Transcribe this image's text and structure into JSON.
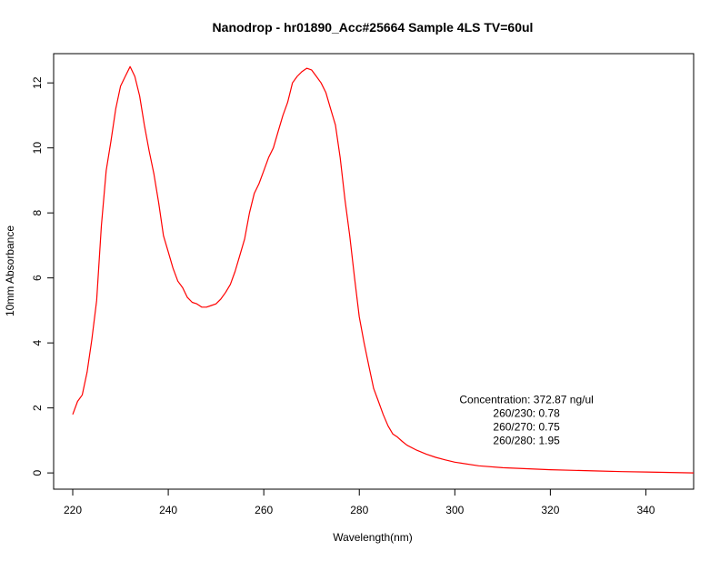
{
  "chart_data": {
    "type": "line",
    "title": "Nanodrop - hr01890_Acc#25664 Sample 4LS  TV=60ul",
    "xlabel": "Wavelength(nm)",
    "ylabel": "10mm Absorbance",
    "xlim": [
      216,
      350
    ],
    "ylim": [
      -0.5,
      12.9
    ],
    "x_ticks": [
      220,
      240,
      260,
      280,
      300,
      320,
      340
    ],
    "y_ticks": [
      0,
      2,
      4,
      6,
      8,
      10,
      12
    ],
    "grid": false,
    "series": [
      {
        "color": "#ff0000",
        "x": [
          220,
          221,
          222,
          223,
          224,
          225,
          226,
          227,
          228,
          229,
          230,
          231,
          232,
          233,
          234,
          235,
          236,
          237,
          238,
          239,
          240,
          241,
          242,
          243,
          244,
          245,
          246,
          247,
          248,
          249,
          250,
          251,
          252,
          253,
          254,
          255,
          256,
          257,
          258,
          259,
          260,
          261,
          262,
          263,
          264,
          265,
          266,
          267,
          268,
          269,
          270,
          271,
          272,
          273,
          274,
          275,
          276,
          277,
          278,
          279,
          280,
          281,
          282,
          283,
          284,
          285,
          286,
          287,
          288,
          289,
          290,
          292,
          294,
          296,
          298,
          300,
          305,
          310,
          315,
          320,
          325,
          330,
          335,
          340,
          345,
          350
        ],
        "y": [
          1.8,
          2.2,
          2.4,
          3.1,
          4.1,
          5.3,
          7.6,
          9.3,
          10.2,
          11.2,
          11.9,
          12.2,
          12.5,
          12.2,
          11.6,
          10.7,
          9.9,
          9.2,
          8.3,
          7.3,
          6.8,
          6.3,
          5.9,
          5.7,
          5.4,
          5.25,
          5.2,
          5.1,
          5.1,
          5.15,
          5.2,
          5.35,
          5.55,
          5.8,
          6.2,
          6.7,
          7.2,
          8.0,
          8.6,
          8.9,
          9.3,
          9.7,
          10.0,
          10.5,
          11.0,
          11.4,
          12.0,
          12.2,
          12.35,
          12.45,
          12.4,
          12.2,
          12.0,
          11.7,
          11.2,
          10.7,
          9.7,
          8.4,
          7.3,
          6.0,
          4.8,
          4.0,
          3.3,
          2.6,
          2.2,
          1.8,
          1.45,
          1.2,
          1.1,
          0.97,
          0.85,
          0.7,
          0.58,
          0.48,
          0.4,
          0.33,
          0.22,
          0.16,
          0.13,
          0.1,
          0.08,
          0.06,
          0.04,
          0.03,
          0.015,
          0.0
        ]
      }
    ],
    "annotations": [
      "Concentration: 372.87 ng/ul",
      "260/230: 0.78",
      "260/270: 0.75",
      "260/280: 1.95"
    ]
  }
}
